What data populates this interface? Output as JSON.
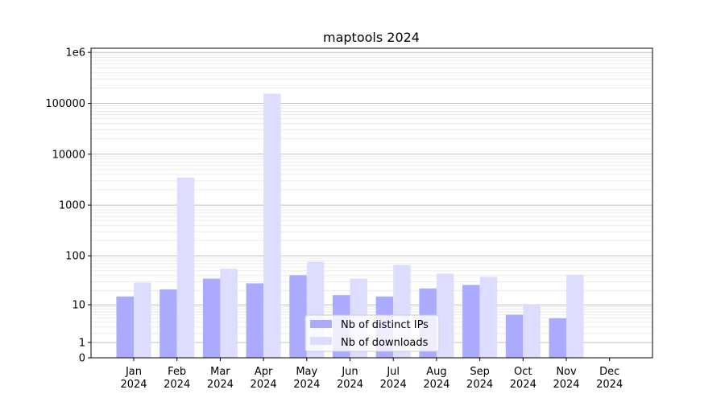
{
  "chart_data": {
    "type": "bar",
    "title": "maptools 2024",
    "xlabel": "",
    "ylabel": "",
    "yscale": "log10(1+x)",
    "ylim": [
      0,
      1000000
    ],
    "yticks": [
      {
        "value": 0,
        "label": "0"
      },
      {
        "value": 1,
        "label": "1"
      },
      {
        "value": 10,
        "label": "10"
      },
      {
        "value": 100,
        "label": "100"
      },
      {
        "value": 1000,
        "label": "1000"
      },
      {
        "value": 10000,
        "label": "10000"
      },
      {
        "value": 100000,
        "label": "100000"
      },
      {
        "value": 1000000,
        "label": "1e6"
      }
    ],
    "grid": true,
    "legend_position": "bottom-center",
    "categories": [
      [
        "Jan",
        "2024"
      ],
      [
        "Feb",
        "2024"
      ],
      [
        "Mar",
        "2024"
      ],
      [
        "Apr",
        "2024"
      ],
      [
        "May",
        "2024"
      ],
      [
        "Jun",
        "2024"
      ],
      [
        "Jul",
        "2024"
      ],
      [
        "Aug",
        "2024"
      ],
      [
        "Sep",
        "2024"
      ],
      [
        "Oct",
        "2024"
      ],
      [
        "Nov",
        "2024"
      ],
      [
        "Dec",
        "2024"
      ]
    ],
    "series": [
      {
        "name": "Nb of distinct IPs",
        "color": "#aaaaff",
        "values": [
          15,
          21,
          35,
          28,
          41,
          16,
          15,
          22,
          26,
          6,
          5,
          0
        ]
      },
      {
        "name": "Nb of downloads",
        "color": "#ddddff",
        "values": [
          29,
          3467,
          55,
          155000,
          76,
          35,
          66,
          44,
          38,
          10,
          42,
          0
        ]
      }
    ]
  }
}
